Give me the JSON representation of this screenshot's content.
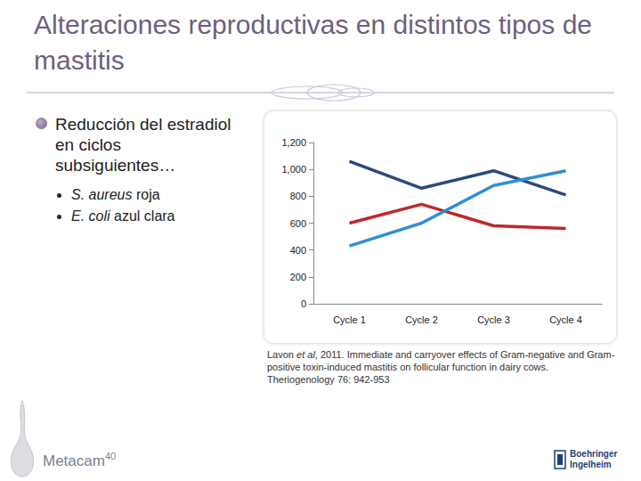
{
  "slide": {
    "title": "Alteraciones reproductivas en distintos tipos de mastitis",
    "bullet": "Reducción del estradiol en ciclos subsiguientes…",
    "sub_bullets": [
      {
        "species": "S. aureus",
        "text": "roja"
      },
      {
        "species": "E. coli",
        "text": "azul clara"
      }
    ],
    "citation": {
      "before": "Lavon",
      "italic": "et al",
      "after": ", 2011. Immediate and carryover effects of Gram-negative and Gram-positive toxin-induced mastitis on follicular function in dairy cows.  Theriogenology 76: 942-953"
    },
    "footer": {
      "product": "Metacam",
      "product_sup": "40",
      "company": [
        "Boehringer",
        "Ingelheim"
      ]
    }
  },
  "chart_data": {
    "type": "line",
    "categories": [
      "Cycle 1",
      "Cycle 2",
      "Cycle 3",
      "Cycle 4"
    ],
    "series": [
      {
        "color": "#2c4a7c",
        "values": [
          1060,
          860,
          990,
          810
        ]
      },
      {
        "color": "#c1272d",
        "values": [
          600,
          740,
          580,
          560
        ]
      },
      {
        "color": "#2f8fd2",
        "values": [
          430,
          600,
          880,
          990
        ]
      }
    ],
    "ylim": [
      0,
      1200
    ],
    "yticks": [
      0,
      200,
      400,
      600,
      800,
      1000,
      1200
    ],
    "grid": false,
    "marker": "none"
  }
}
